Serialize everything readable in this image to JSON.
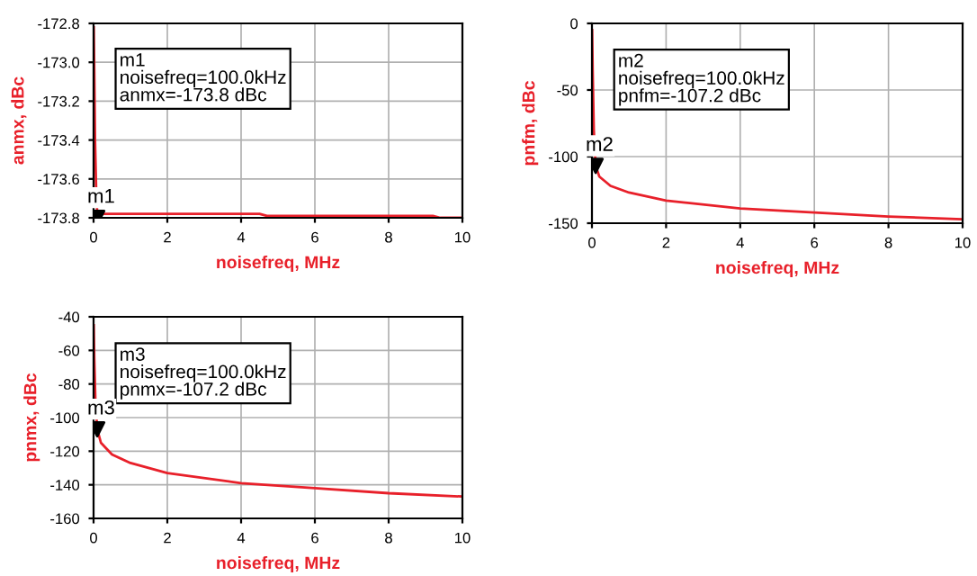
{
  "chart_data": [
    {
      "type": "line",
      "xlabel": "noisefreq, MHz",
      "ylabel": "anmx, dBc",
      "grid": true,
      "xlim": [
        0,
        10
      ],
      "ylim": [
        -173.8,
        -172.8
      ],
      "xticks": [
        0,
        2,
        4,
        6,
        8,
        10
      ],
      "yticks": [
        {
          "value": -172.8,
          "label": "-172.8"
        },
        {
          "value": -173.0,
          "label": "-173.0"
        },
        {
          "value": -173.2,
          "label": "-173.2"
        },
        {
          "value": -173.4,
          "label": "-173.4"
        },
        {
          "value": -173.6,
          "label": "-173.6"
        },
        {
          "value": -173.8,
          "label": "-173.8"
        }
      ],
      "series": [
        {
          "color": "#e8202a",
          "x": [
            0.005,
            0.02,
            0.04,
            0.07,
            0.1,
            2,
            4.5,
            4.7,
            9.2,
            9.4,
            10
          ],
          "values": [
            -172.82,
            -173.05,
            -173.4,
            -173.65,
            -173.78,
            -173.78,
            -173.78,
            -173.79,
            -173.79,
            -173.8,
            -173.8
          ]
        },
        {
          "type": "scatter",
          "name": "m1",
          "marker": "triangle",
          "color": "#000000",
          "x": [
            0.1
          ],
          "values": [
            -173.8
          ]
        }
      ],
      "annotations": [
        "m1\nnoisefreq=100.0kHz\nanmx=-173.8 dBc"
      ]
    },
    {
      "type": "line",
      "xlabel": "noisefreq, MHz",
      "ylabel": "pnfm, dBc",
      "grid": true,
      "xlim": [
        0,
        10
      ],
      "ylim": [
        -150,
        0
      ],
      "xticks": [
        0,
        2,
        4,
        6,
        8,
        10
      ],
      "yticks": [
        0,
        -50,
        -100,
        -150
      ],
      "series": [
        {
          "color": "#e8202a",
          "x": [
            0.005,
            0.02,
            0.05,
            0.1,
            0.2,
            0.5,
            1,
            2,
            4,
            6,
            8,
            10
          ],
          "values": [
            -5,
            -35,
            -80,
            -107,
            -115,
            -122,
            -127,
            -133,
            -139,
            -142,
            -145,
            -147
          ]
        },
        {
          "type": "scatter",
          "name": "m2",
          "marker": "triangle",
          "color": "#000000",
          "x": [
            0.1
          ],
          "values": [
            -107
          ]
        }
      ],
      "annotations": [
        "m2\nnoisefreq=100.0kHz\npnfm=-107.2 dBc"
      ]
    },
    {
      "type": "line",
      "xlabel": "noisefreq, MHz",
      "ylabel": "pnmx, dBc",
      "grid": true,
      "xlim": [
        0,
        10
      ],
      "ylim": [
        -160,
        -40
      ],
      "xticks": [
        0,
        2,
        4,
        6,
        8,
        10
      ],
      "yticks": [
        -40,
        -60,
        -80,
        -100,
        -120,
        -140,
        -160
      ],
      "series": [
        {
          "color": "#e8202a",
          "x": [
            0.005,
            0.02,
            0.05,
            0.1,
            0.2,
            0.5,
            1,
            2,
            4,
            6,
            8,
            10
          ],
          "values": [
            -45,
            -65,
            -90,
            -107,
            -115,
            -122,
            -127,
            -133,
            -139,
            -142,
            -145,
            -147
          ]
        },
        {
          "type": "scatter",
          "name": "m3",
          "marker": "triangle",
          "color": "#000000",
          "x": [
            0.1
          ],
          "values": [
            -107
          ]
        }
      ],
      "annotations": [
        "m3\nnoisefreq=100.0kHz\npnmx=-107.2 dBc"
      ]
    }
  ]
}
